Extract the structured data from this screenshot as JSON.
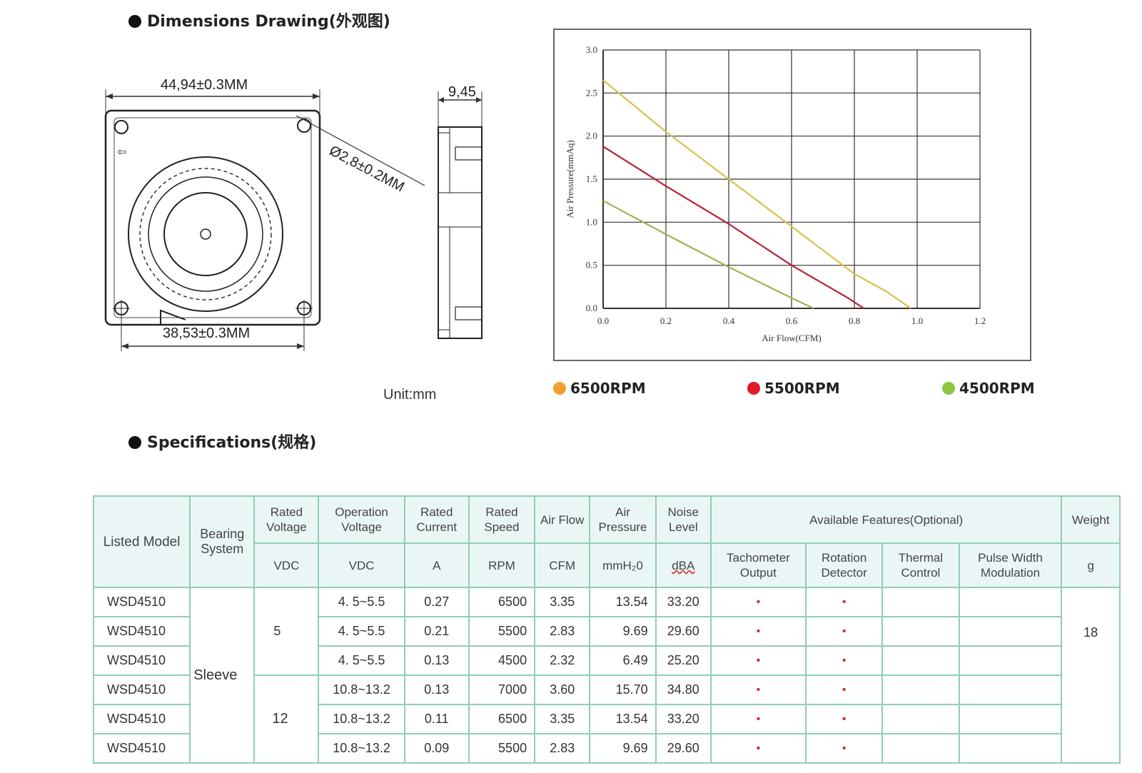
{
  "dimensions": {
    "title": "Dimensions Drawing(外观图)",
    "width_label": "44,94±0.3MM",
    "hole_spacing_label": "38,53±0.3MM",
    "hole_dia_label": "Ø2,8±0.2MM",
    "thickness_label": "9,45",
    "unit_label": "Unit:mm"
  },
  "chart_data": {
    "type": "line",
    "xlabel": "Air Flow(CFM)",
    "ylabel": "Air Pressure(mmAq)",
    "xlim": [
      0,
      1.2
    ],
    "ylim": [
      0,
      3.0
    ],
    "xticks": [
      "0.0",
      "0.2",
      "0.4",
      "0.6",
      "0.8",
      "1.0",
      "1.2"
    ],
    "yticks": [
      "0.0",
      "0.5",
      "1.0",
      "1.5",
      "2.0",
      "2.5",
      "3.0"
    ],
    "grid": true,
    "series": [
      {
        "name": "6500RPM",
        "color": "#d9c24a",
        "x": [
          0.0,
          0.2,
          0.4,
          0.6,
          0.8,
          0.9,
          0.98
        ],
        "y": [
          2.65,
          2.05,
          1.5,
          0.95,
          0.4,
          0.2,
          0.0
        ]
      },
      {
        "name": "5500RPM",
        "color": "#b8242f",
        "x": [
          0.0,
          0.2,
          0.4,
          0.6,
          0.78,
          0.83
        ],
        "y": [
          1.88,
          1.42,
          0.98,
          0.5,
          0.12,
          0.0
        ]
      },
      {
        "name": "4500RPM",
        "color": "#9bb552",
        "x": [
          0.0,
          0.2,
          0.4,
          0.6,
          0.67
        ],
        "y": [
          1.25,
          0.86,
          0.48,
          0.12,
          0.0
        ]
      }
    ]
  },
  "legend": [
    {
      "label": "6500RPM",
      "color": "#f0a032"
    },
    {
      "label": "5500RPM",
      "color": "#e01b24"
    },
    {
      "label": "4500RPM",
      "color": "#8cc63f"
    }
  ],
  "specs": {
    "title": "Specifications(规格)",
    "headers": {
      "listed_model": "Listed Model",
      "bearing_system": "Bearing System",
      "rated_voltage": "Rated Voltage",
      "operation_voltage": "Operation Voltage",
      "rated_current": "Rated Current",
      "rated_speed": "Rated Speed",
      "air_flow": "Air Flow",
      "air_pressure": "Air Pressure",
      "noise_level": "Noise Level",
      "available_features": "Available Features(Optional)",
      "weight": "Weight",
      "tachometer": "Tachometer Output",
      "rotation": "Rotation Detector",
      "thermal": "Thermal Control",
      "pwm": "Pulse Width Modulation"
    },
    "units": {
      "rated_voltage": "VDC",
      "operation_voltage": "VDC",
      "rated_current": "A",
      "rated_speed": "RPM",
      "air_flow": "CFM",
      "air_pressure": "mmH₂0",
      "noise_level": "dBA",
      "weight": "g"
    },
    "bearing": "Sleeve",
    "voltage_5": "5",
    "voltage_12": "12",
    "weight_value": "18",
    "rows": [
      {
        "model": "WSD4510",
        "op_voltage": "4. 5~5.5",
        "current": "0.27",
        "speed": "6500",
        "flow": "3.35",
        "pressure": "13.54",
        "noise": "33.20",
        "tach": "•",
        "rot": "•"
      },
      {
        "model": "WSD4510",
        "op_voltage": "4. 5~5.5",
        "current": "0.21",
        "speed": "5500",
        "flow": "2.83",
        "pressure": "9.69",
        "noise": "29.60",
        "tach": "•",
        "rot": "•"
      },
      {
        "model": "WSD4510",
        "op_voltage": "4. 5~5.5",
        "current": "0.13",
        "speed": "4500",
        "flow": "2.32",
        "pressure": "6.49",
        "noise": "25.20",
        "tach": "•",
        "rot": "•"
      },
      {
        "model": "WSD4510",
        "op_voltage": "10.8~13.2",
        "current": "0.13",
        "speed": "7000",
        "flow": "3.60",
        "pressure": "15.70",
        "noise": "34.80",
        "tach": "•",
        "rot": "•"
      },
      {
        "model": "WSD4510",
        "op_voltage": "10.8~13.2",
        "current": "0.11",
        "speed": "6500",
        "flow": "3.35",
        "pressure": "13.54",
        "noise": "33.20",
        "tach": "•",
        "rot": "•"
      },
      {
        "model": "WSD4510",
        "op_voltage": "10.8~13.2",
        "current": "0.09",
        "speed": "5500",
        "flow": "2.83",
        "pressure": "9.69",
        "noise": "29.60",
        "tach": "•",
        "rot": "•"
      }
    ]
  }
}
